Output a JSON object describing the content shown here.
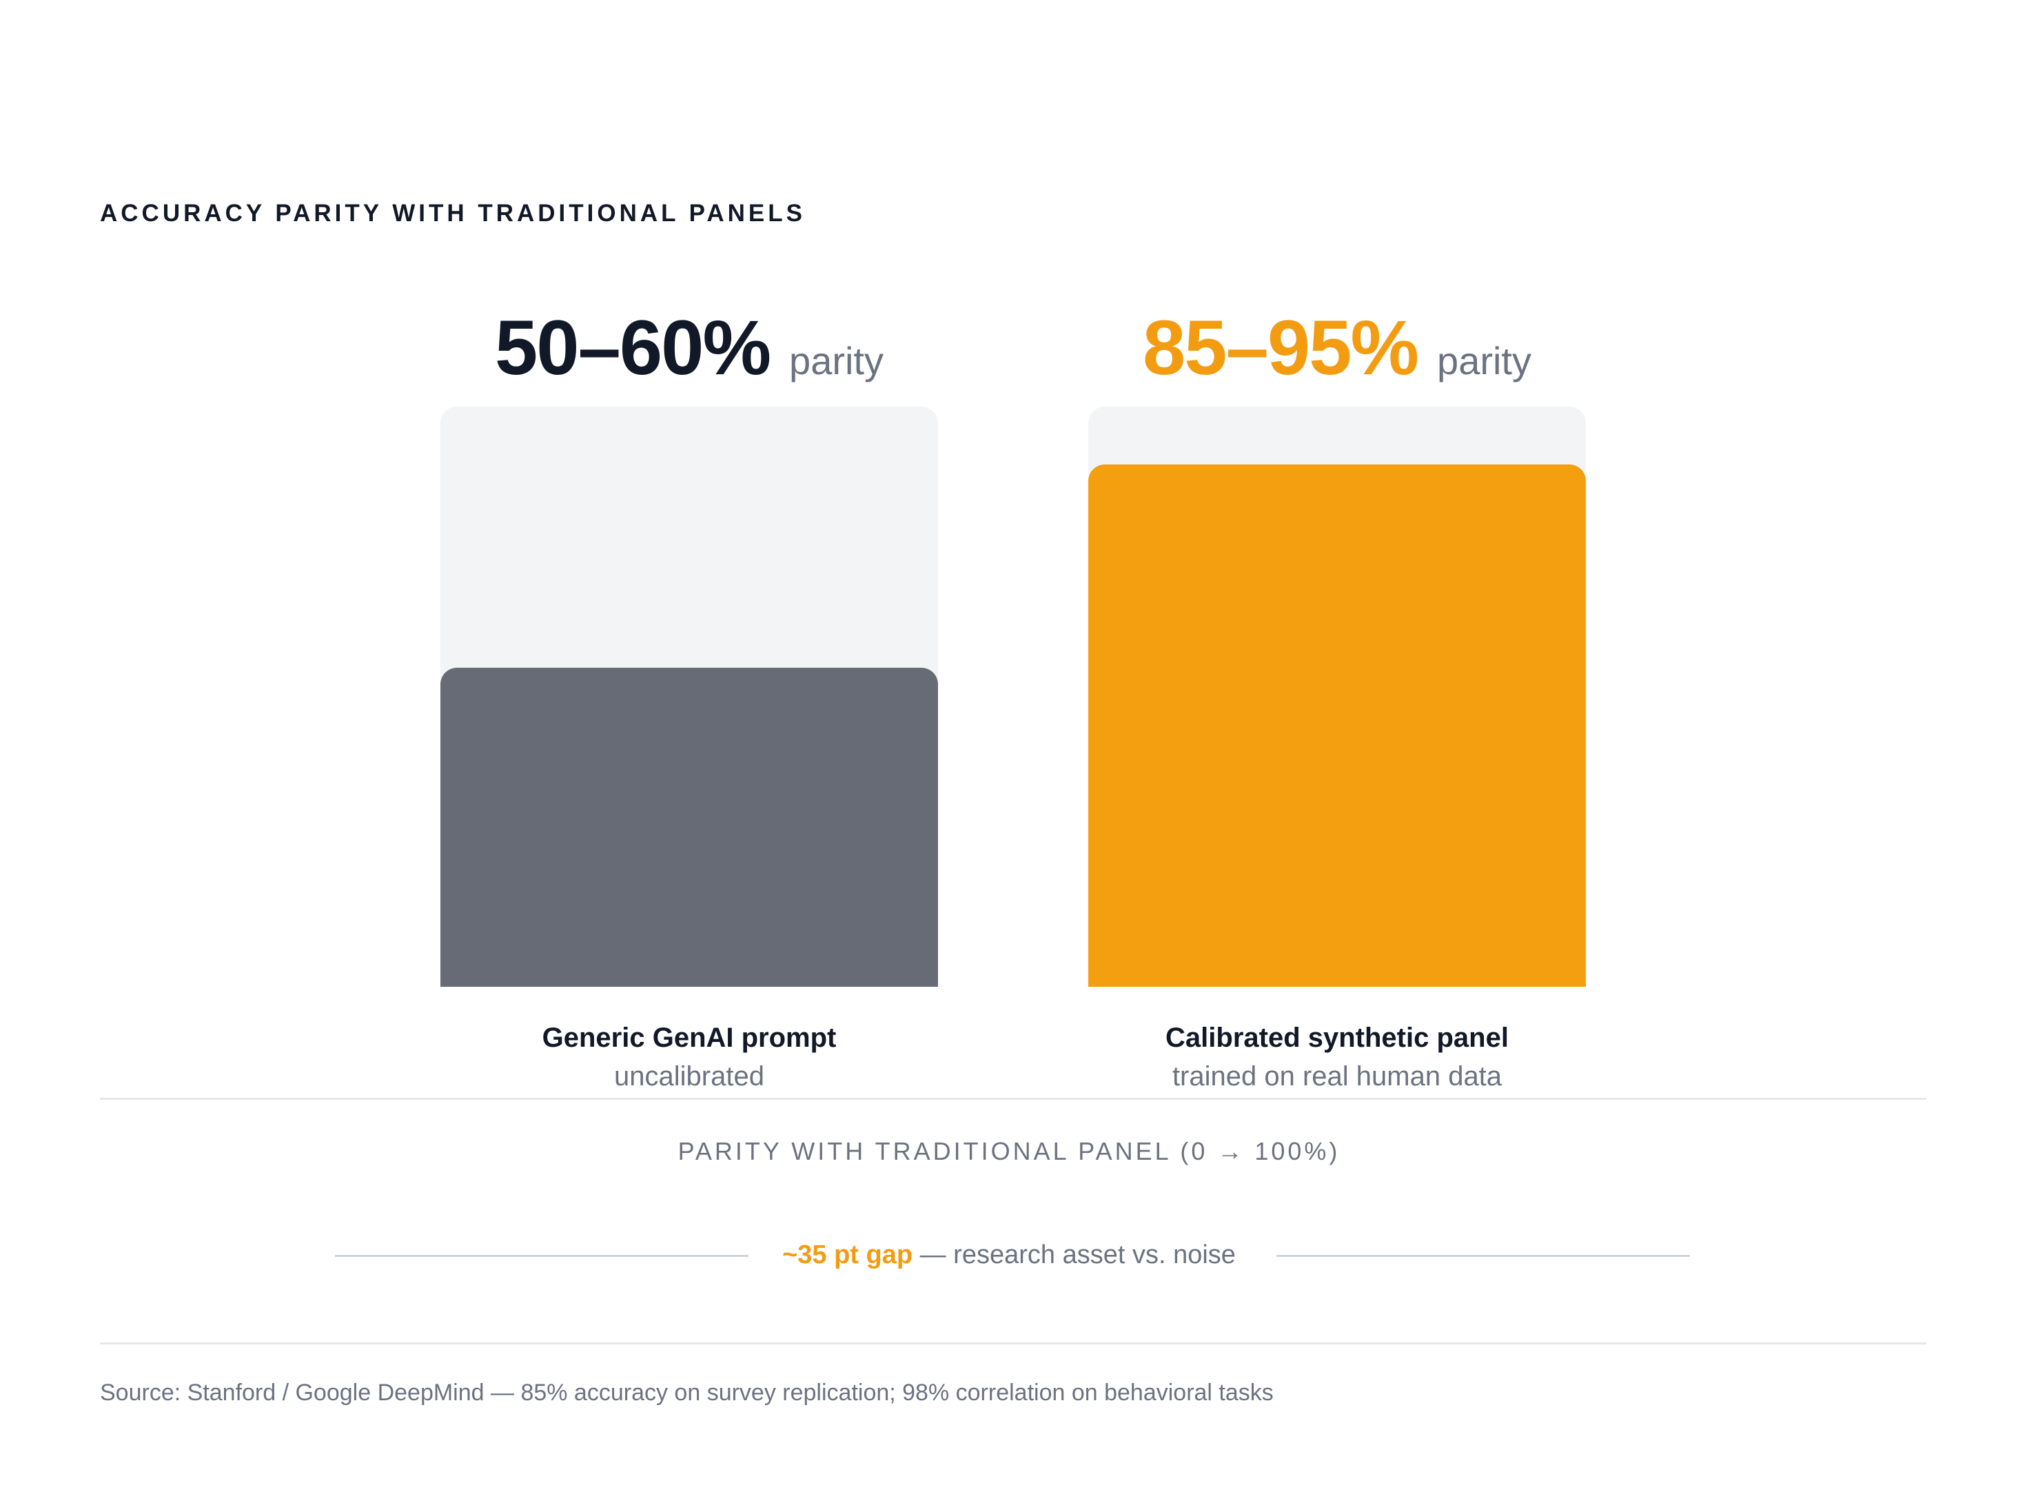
{
  "chart_data": {
    "type": "bar",
    "title": "ACCURACY PARITY WITH TRADITIONAL PANELS",
    "xlabel": "PARITY WITH TRADITIONAL PANEL (0 → 100%)",
    "ylim": [
      0,
      100
    ],
    "categories": [
      "Generic GenAI prompt",
      "Calibrated synthetic panel"
    ],
    "subtitles": [
      "uncalibrated",
      "trained on real human data"
    ],
    "value_labels": [
      "50–60%",
      "85–95%"
    ],
    "value_unit": "parity",
    "values": [
      55,
      90
    ],
    "colors": [
      "#676b75",
      "#f39f10"
    ],
    "value_label_colors": [
      "#111827",
      "#f39c12"
    ],
    "annotation": {
      "highlight": "~35 pt gap",
      "text": "— research asset vs. noise"
    },
    "source": "Source: Stanford / Google DeepMind — 85% accuracy on survey replication; 98% correlation on behavioral tasks"
  }
}
